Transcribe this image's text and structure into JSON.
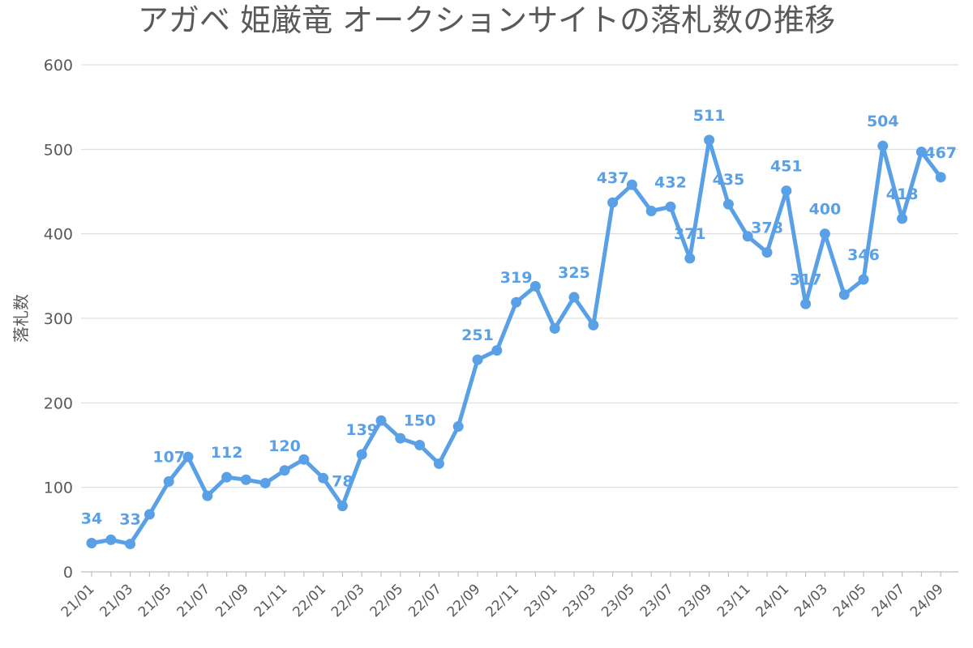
{
  "chart_data": {
    "type": "line",
    "title": "アガベ 姫厳竜 オークションサイトの落札数の推移",
    "ylabel": "落札数",
    "xlabel": "",
    "ylim": [
      0,
      600
    ],
    "yticks": [
      0,
      100,
      200,
      300,
      400,
      500,
      600
    ],
    "grid": true,
    "color": "#5aa0e6",
    "x": [
      "21/01",
      "21/02",
      "21/03",
      "21/04",
      "21/05",
      "21/06",
      "21/07",
      "21/08",
      "21/09",
      "21/10",
      "21/11",
      "21/12",
      "22/01",
      "22/02",
      "22/03",
      "22/04",
      "22/05",
      "22/06",
      "22/07",
      "22/08",
      "22/09",
      "22/10",
      "22/11",
      "22/12",
      "23/01",
      "23/02",
      "23/03",
      "23/04",
      "23/05",
      "23/06",
      "23/07",
      "23/08",
      "23/09",
      "23/10",
      "23/11",
      "23/12",
      "24/01",
      "24/02",
      "24/03",
      "24/04",
      "24/05",
      "24/06",
      "24/07",
      "24/08",
      "24/09"
    ],
    "x_tick_labels": [
      "21/01",
      "21/03",
      "21/05",
      "21/07",
      "21/09",
      "21/11",
      "22/01",
      "22/03",
      "22/05",
      "22/07",
      "22/09",
      "22/11",
      "23/01",
      "23/03",
      "23/05",
      "23/07",
      "23/09",
      "23/11",
      "24/01",
      "24/03",
      "24/05",
      "24/07",
      "24/09"
    ],
    "series": [
      {
        "values": [
          34,
          38,
          33,
          68,
          107,
          136,
          90,
          112,
          109,
          105,
          120,
          133,
          111,
          78,
          139,
          179,
          158,
          150,
          128,
          172,
          251,
          262,
          319,
          338,
          288,
          325,
          292,
          437,
          458,
          427,
          432,
          371,
          511,
          435,
          397,
          378,
          451,
          317,
          400,
          328,
          346,
          504,
          418,
          497,
          467
        ]
      }
    ],
    "data_labels": [
      {
        "index": 0,
        "text": "34"
      },
      {
        "index": 2,
        "text": "33"
      },
      {
        "index": 4,
        "text": "107"
      },
      {
        "index": 7,
        "text": "112"
      },
      {
        "index": 10,
        "text": "120"
      },
      {
        "index": 13,
        "text": "78"
      },
      {
        "index": 14,
        "text": "139"
      },
      {
        "index": 17,
        "text": "150"
      },
      {
        "index": 20,
        "text": "251"
      },
      {
        "index": 22,
        "text": "319"
      },
      {
        "index": 25,
        "text": "325"
      },
      {
        "index": 27,
        "text": "437"
      },
      {
        "index": 30,
        "text": "432"
      },
      {
        "index": 31,
        "text": "371"
      },
      {
        "index": 32,
        "text": "511"
      },
      {
        "index": 33,
        "text": "435"
      },
      {
        "index": 35,
        "text": "378"
      },
      {
        "index": 36,
        "text": "451"
      },
      {
        "index": 37,
        "text": "317"
      },
      {
        "index": 38,
        "text": "400"
      },
      {
        "index": 40,
        "text": "346"
      },
      {
        "index": 41,
        "text": "504"
      },
      {
        "index": 42,
        "text": "418"
      },
      {
        "index": 44,
        "text": "467"
      }
    ]
  }
}
